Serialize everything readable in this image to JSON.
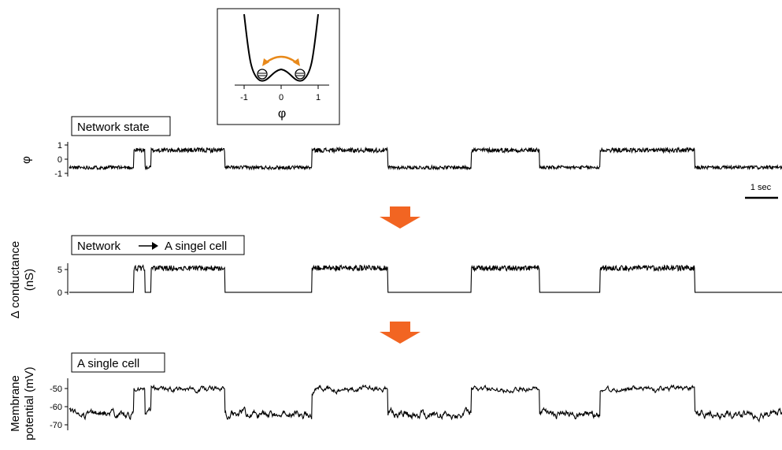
{
  "figure": {
    "inset": {
      "xlabel": "φ",
      "xticks": [
        "-1",
        "0",
        "1"
      ],
      "arrow_color": "#e8891a"
    },
    "panel1": {
      "box_label": "Network state",
      "ylabel": "φ",
      "yticks": [
        "1",
        "0",
        "-1"
      ]
    },
    "scalebar": {
      "label": "1 sec"
    },
    "panel2": {
      "box_label_left": "Network",
      "box_label_right": "A singel cell",
      "ylabel_line1": "Δ conductance",
      "ylabel_line2": "(nS)",
      "yticks": [
        "5",
        "0"
      ]
    },
    "panel3": {
      "box_label": "A single cell",
      "ylabel_line1": "Membrane",
      "ylabel_line2": "potential (mV)",
      "yticks": [
        "-50",
        "-60",
        "-70"
      ]
    },
    "arrow_color": "#f26522"
  },
  "chart_data": [
    {
      "type": "line",
      "title": "Network state",
      "ylabel": "φ",
      "ylim": [
        -1.1,
        1.2
      ],
      "yticks": [
        1,
        0,
        -1
      ],
      "time_unit": "sec",
      "duration": 9.4,
      "segments": [
        [
          0.0,
          0.85,
          "low"
        ],
        [
          0.85,
          1.0,
          "high"
        ],
        [
          1.0,
          1.08,
          "low"
        ],
        [
          1.08,
          2.05,
          "high"
        ],
        [
          2.05,
          3.2,
          "low"
        ],
        [
          3.2,
          4.2,
          "high"
        ],
        [
          4.2,
          5.3,
          "low"
        ],
        [
          5.3,
          6.2,
          "high"
        ],
        [
          6.2,
          7.0,
          "low"
        ],
        [
          7.0,
          8.25,
          "high"
        ],
        [
          8.25,
          9.4,
          "low"
        ]
      ],
      "levels": {
        "high": 0.65,
        "low": -0.5
      }
    },
    {
      "type": "line",
      "title": "Network → A singel cell",
      "ylabel": "Δ conductance (nS)",
      "ylim": [
        -0.5,
        6.0
      ],
      "yticks": [
        5,
        0
      ],
      "levels": {
        "high": 5.0,
        "low": 0.0
      }
    },
    {
      "type": "line",
      "title": "A single cell",
      "ylabel": "Membrane potential (mV)",
      "ylim": [
        -74,
        -45
      ],
      "yticks": [
        -50,
        -60,
        -70
      ],
      "levels": {
        "high": -51,
        "low": -65
      }
    }
  ]
}
